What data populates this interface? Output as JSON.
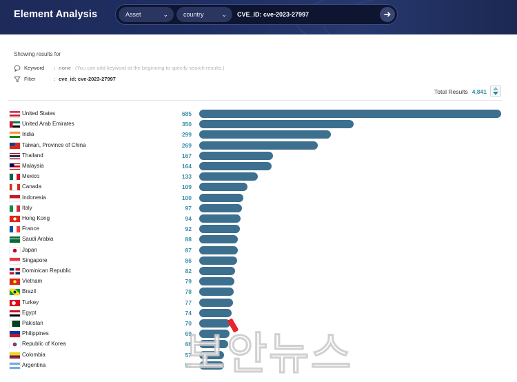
{
  "app": {
    "title": "Element Analysis"
  },
  "search": {
    "asset_select": "Asset",
    "country_select": "country",
    "query": "CVE_ID: cve-2023-27997",
    "go_icon": "arrow-right-icon"
  },
  "info": {
    "showing_label": "Showing results for",
    "keyword_label": "Keyword",
    "keyword_value": "none",
    "keyword_hint": "(You can add keyword at the beginning to specify search results.)",
    "filter_label": "Filter",
    "filter_value": "cve_id: cve-2023-27997",
    "separator": ":"
  },
  "total": {
    "label": "Total Results",
    "value": "4,841"
  },
  "watermark": "보안뉴스",
  "chart_data": {
    "type": "bar",
    "orientation": "horizontal",
    "bar_color": "#3d6f8f",
    "value_color": "#3a8fa8",
    "xlim": [
      0,
      685
    ],
    "categories": [
      "United States",
      "United Arab Emirates",
      "India",
      "Taiwan, Province of China",
      "Thailand",
      "Malaysia",
      "Mexico",
      "Canada",
      "Indonesia",
      "Italy",
      "Hong Kong",
      "France",
      "Saudi Arabia",
      "Japan",
      "Singapore",
      "Dominican Republic",
      "Vietnam",
      "Brazil",
      "Turkey",
      "Egypt",
      "Pakistan",
      "Philippines",
      "Republic of Korea",
      "Colombia",
      "Argentina"
    ],
    "values": [
      685,
      350,
      299,
      269,
      167,
      164,
      133,
      109,
      100,
      97,
      94,
      92,
      88,
      87,
      86,
      82,
      79,
      78,
      77,
      74,
      70,
      69,
      66,
      57,
      56
    ],
    "flags": [
      "us",
      "ae",
      "in",
      "tw",
      "th",
      "my",
      "mx",
      "ca",
      "id",
      "it",
      "hk",
      "fr",
      "sa",
      "jp",
      "sg",
      "do",
      "vn",
      "br",
      "tr",
      "eg",
      "pk",
      "ph",
      "kr",
      "co",
      "ar"
    ]
  }
}
